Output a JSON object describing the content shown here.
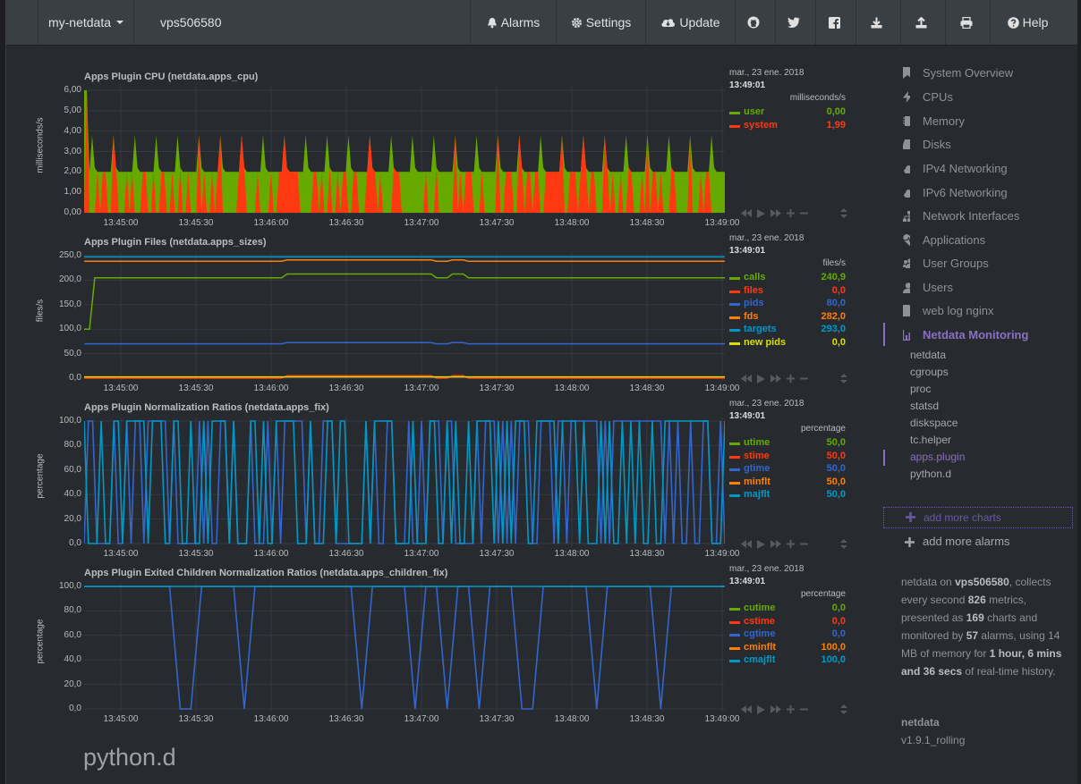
{
  "navbar": {
    "brand": "my-netdata",
    "host": "vps506580",
    "alarms": "Alarms",
    "settings": "Settings",
    "update": "Update",
    "help": "Help"
  },
  "charts": [
    {
      "title": "Apps Plugin CPU (netdata.apps_cpu)",
      "ylabel": "milliseconds/s",
      "units": "milliseconds/s",
      "date": "mar., 23 ene. 2018",
      "time": "13:49:01",
      "yticks": [
        "6,00",
        "5,00",
        "4,00",
        "3,00",
        "2,00",
        "1,00",
        "0,00"
      ],
      "xticks": [
        "13:45:00",
        "13:45:30",
        "13:46:00",
        "13:46:30",
        "13:47:00",
        "13:47:30",
        "13:48:00",
        "13:48:30",
        "13:49:00"
      ],
      "legend": [
        {
          "name": "user",
          "value": "0,00",
          "color": "#66aa00"
        },
        {
          "name": "system",
          "value": "1,99",
          "color": "#fe3912"
        }
      ]
    },
    {
      "title": "Apps Plugin Files (netdata.apps_sizes)",
      "ylabel": "files/s",
      "units": "files/s",
      "date": "mar., 23 ene. 2018",
      "time": "13:49:01",
      "yticks": [
        "250,0",
        "200,0",
        "150,0",
        "100,0",
        "50,0",
        "0,0"
      ],
      "xticks": [
        "13:45:00",
        "13:45:30",
        "13:46:00",
        "13:46:30",
        "13:47:00",
        "13:47:30",
        "13:48:00",
        "13:48:30",
        "13:49:00"
      ],
      "legend": [
        {
          "name": "calls",
          "value": "240,9",
          "color": "#66aa00"
        },
        {
          "name": "files",
          "value": "0,0",
          "color": "#fe3912"
        },
        {
          "name": "pids",
          "value": "80,0",
          "color": "#3366cc"
        },
        {
          "name": "fds",
          "value": "282,0",
          "color": "#ff8000"
        },
        {
          "name": "targets",
          "value": "293,0",
          "color": "#0099c6"
        },
        {
          "name": "new pids",
          "value": "0,0",
          "color": "#dddd00"
        }
      ]
    },
    {
      "title": "Apps Plugin Normalization Ratios (netdata.apps_fix)",
      "ylabel": "percentage",
      "units": "percentage",
      "date": "mar., 23 ene. 2018",
      "time": "13:49:01",
      "yticks": [
        "100,0",
        "80,0",
        "60,0",
        "40,0",
        "20,0",
        "0,0"
      ],
      "xticks": [
        "13:45:00",
        "13:45:30",
        "13:46:00",
        "13:46:30",
        "13:47:00",
        "13:47:30",
        "13:48:00",
        "13:48:30",
        "13:49:00"
      ],
      "legend": [
        {
          "name": "utime",
          "value": "50,0",
          "color": "#66aa00"
        },
        {
          "name": "stime",
          "value": "50,0",
          "color": "#fe3912"
        },
        {
          "name": "gtime",
          "value": "50,0",
          "color": "#3366cc"
        },
        {
          "name": "minflt",
          "value": "50,0",
          "color": "#ff8000"
        },
        {
          "name": "majflt",
          "value": "50,0",
          "color": "#0099c6"
        }
      ]
    },
    {
      "title": "Apps Plugin Exited Children Normalization Ratios (netdata.apps_children_fix)",
      "ylabel": "percentage",
      "units": "percentage",
      "date": "mar., 23 ene. 2018",
      "time": "13:49:01",
      "yticks": [
        "100,0",
        "80,0",
        "60,0",
        "40,0",
        "20,0",
        "0,0"
      ],
      "xticks": [
        "13:45:00",
        "13:45:30",
        "13:46:00",
        "13:46:30",
        "13:47:00",
        "13:47:30",
        "13:48:00",
        "13:48:30",
        "13:49:00"
      ],
      "legend": [
        {
          "name": "cutime",
          "value": "0,0",
          "color": "#66aa00"
        },
        {
          "name": "cstime",
          "value": "0,0",
          "color": "#fe3912"
        },
        {
          "name": "cgtime",
          "value": "0,0",
          "color": "#3366cc"
        },
        {
          "name": "cminflt",
          "value": "100,0",
          "color": "#ff8000"
        },
        {
          "name": "cmajflt",
          "value": "100,0",
          "color": "#0099c6"
        }
      ]
    }
  ],
  "sidebar": {
    "items": [
      {
        "label": "System Overview",
        "icon": "bookmark-icon"
      },
      {
        "label": "CPUs",
        "icon": "bolt-icon"
      },
      {
        "label": "Memory",
        "icon": "chip-icon"
      },
      {
        "label": "Disks",
        "icon": "hdd-icon"
      },
      {
        "label": "IPv4 Networking",
        "icon": "cloud-icon"
      },
      {
        "label": "IPv6 Networking",
        "icon": "cloud-icon"
      },
      {
        "label": "Network Interfaces",
        "icon": "sitemap-icon"
      },
      {
        "label": "Applications",
        "icon": "heartbeat-icon"
      },
      {
        "label": "User Groups",
        "icon": "users-icon"
      },
      {
        "label": "Users",
        "icon": "user-icon"
      },
      {
        "label": "web log nginx",
        "icon": "file-icon"
      },
      {
        "label": "Netdata Monitoring",
        "icon": "bar-chart-icon"
      }
    ],
    "subitems": [
      "netdata",
      "cgroups",
      "proc",
      "statsd",
      "diskspace",
      "tc.helper",
      "apps.plugin",
      "python.d"
    ],
    "add_charts": "add more charts",
    "add_alarms": "add more alarms",
    "info": {
      "p1": "netdata on ",
      "host": "vps506580",
      "p2": ", collects every second ",
      "metrics": "826",
      "p3": " metrics, presented as ",
      "charts": "169",
      "p4": " charts and monitored by ",
      "alarms": "57",
      "p5": " alarms, using 14 MB of memory for ",
      "hours": "1 hour, 6 mins and 36 secs",
      "p6": " of real-time history."
    },
    "version_name": "netdata",
    "version": "v1.9.1_rolling"
  },
  "section_heading": "python.d",
  "colors": {
    "accent": "#8b6fc4",
    "green": "#66aa00",
    "red": "#fe3912",
    "blue": "#3366cc",
    "orange": "#ff8000",
    "cyan": "#0099c6",
    "yellow": "#dddd00"
  }
}
